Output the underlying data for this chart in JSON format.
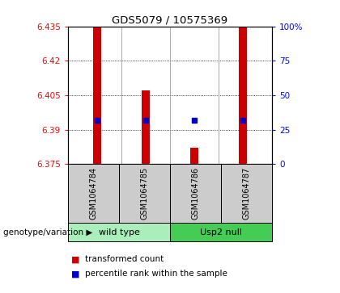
{
  "title": "GDS5079 / 10575369",
  "samples": [
    "GSM1064784",
    "GSM1064785",
    "GSM1064786",
    "GSM1064787"
  ],
  "bar_bottoms": [
    6.375,
    6.375,
    6.375,
    6.375
  ],
  "bar_tops": [
    6.435,
    6.407,
    6.382,
    6.435
  ],
  "blue_y": [
    6.394,
    6.394,
    6.394,
    6.394
  ],
  "ylim": [
    6.375,
    6.435
  ],
  "yticks_left": [
    6.375,
    6.39,
    6.405,
    6.42,
    6.435
  ],
  "ytick_labels_left": [
    "6.375",
    "6.39",
    "6.405",
    "6.42",
    "6.435"
  ],
  "yticks_right_pct": [
    0,
    25,
    50,
    75,
    100
  ],
  "ytick_labels_right": [
    "0",
    "25",
    "50",
    "75",
    "100%"
  ],
  "bar_color": "#cc0000",
  "dot_color": "#0000cc",
  "group1_label": "wild type",
  "group2_label": "Usp2 null",
  "group1_color": "#aaeebb",
  "group2_color": "#44cc55",
  "sample_box_color": "#cccccc",
  "legend_red_label": "transformed count",
  "legend_blue_label": "percentile rank within the sample",
  "bar_width": 0.18
}
